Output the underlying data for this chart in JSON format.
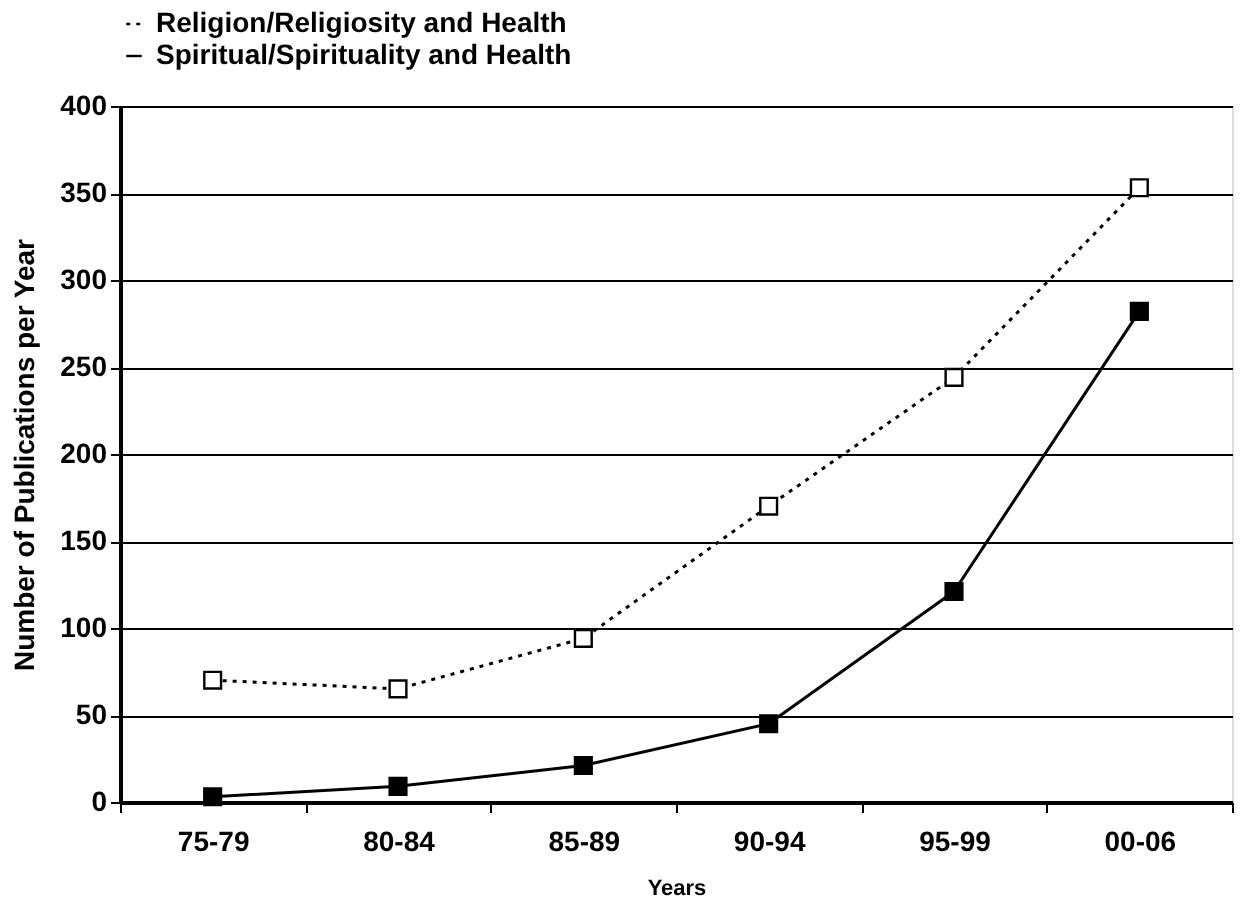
{
  "chart_data": {
    "type": "line",
    "xlabel": "Years",
    "ylabel": "Number of Publications per Year",
    "categories": [
      "75-79",
      "80-84",
      "85-89",
      "90-94",
      "95-99",
      "00-06"
    ],
    "series": [
      {
        "name": "Religion/Religiosity and Health",
        "color": "#000000",
        "line_style": "dotted",
        "values": [
          70,
          65,
          94,
          170,
          244,
          353
        ]
      },
      {
        "name": "Spiritual/Spirituality and Health",
        "color": "#000000",
        "line_style": "solid",
        "values": [
          3,
          9,
          21,
          45,
          121,
          282
        ]
      }
    ],
    "ylim": [
      0,
      400
    ],
    "yticks": [
      0,
      50,
      100,
      150,
      200,
      250,
      300,
      350,
      400
    ],
    "grid": "y",
    "legend": "top",
    "marker": "square"
  }
}
